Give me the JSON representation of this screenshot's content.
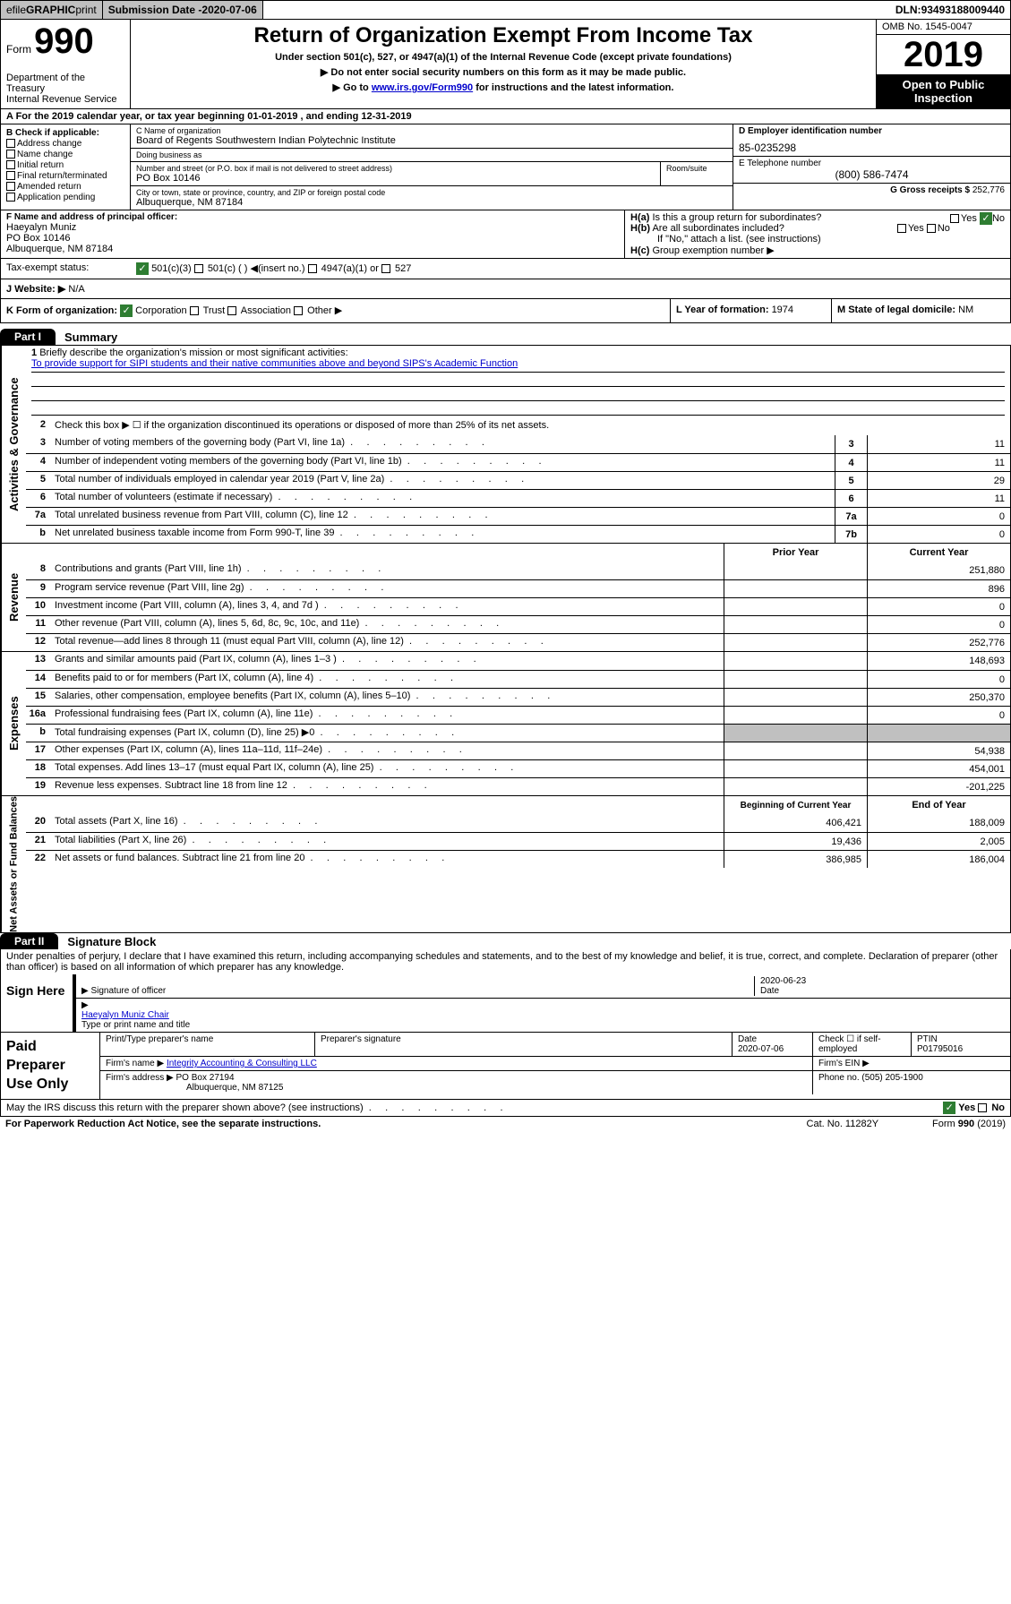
{
  "topbar": {
    "efile_prefix": "efile ",
    "efile_graphic": "GRAPHIC",
    "efile_print": " print",
    "submission_label": "Submission Date - ",
    "submission_date": "2020-07-06",
    "dln_label": "DLN: ",
    "dln": "93493188009440"
  },
  "header": {
    "form_word": "Form",
    "form_num": "990",
    "dept": "Department of the Treasury\nInternal Revenue Service",
    "title": "Return of Organization Exempt From Income Tax",
    "sub1": "Under section 501(c), 527, or 4947(a)(1) of the Internal Revenue Code (except private foundations)",
    "sub2": "Do not enter social security numbers on this form as it may be made public.",
    "sub3_pre": "Go to ",
    "sub3_link": "www.irs.gov/Form990",
    "sub3_post": " for instructions and the latest information.",
    "omb": "OMB No. 1545-0047",
    "year": "2019",
    "open": "Open to Public Inspection"
  },
  "rowA": {
    "text": "A For the 2019 calendar year, or tax year beginning ",
    "begin": "01-01-2019",
    "mid": "   , and ending ",
    "end": "12-31-2019"
  },
  "boxB": {
    "title": "B Check if applicable:",
    "items": [
      "Address change",
      "Name change",
      "Initial return",
      "Final return/terminated",
      "Amended return",
      "Application pending"
    ]
  },
  "boxC": {
    "name_label": "C Name of organization",
    "name": "Board of Regents Southwestern Indian Polytechnic Institute",
    "dba_label": "Doing business as",
    "addr_label": "Number and street (or P.O. box if mail is not delivered to street address)",
    "room_label": "Room/suite",
    "addr": "PO Box 10146",
    "city_label": "City or town, state or province, country, and ZIP or foreign postal code",
    "city": "Albuquerque, NM  87184"
  },
  "boxD": {
    "ein_label": "D Employer identification number",
    "ein": "85-0235298",
    "phone_label": "E Telephone number",
    "phone": "(800) 586-7474",
    "gross_label": "G Gross receipts $ ",
    "gross": "252,776"
  },
  "boxF": {
    "label": "F  Name and address of principal officer:",
    "name": "Haeyalyn Muniz",
    "addr1": "PO Box 10146",
    "addr2": "Albuquerque, NM  87184"
  },
  "boxH": {
    "ha": "H(a)  Is this a group return for subordinates?",
    "hb": "H(b)  Are all subordinates included?",
    "hb_note": "If \"No,\" attach a list. (see instructions)",
    "hc": "H(c)  Group exemption number ▶",
    "yes": "Yes",
    "no": "No"
  },
  "tax": {
    "label": "Tax-exempt status:",
    "o1": "501(c)(3)",
    "o2": "501(c) (   ) ◀(insert no.)",
    "o3": "4947(a)(1) or",
    "o4": "527"
  },
  "rowJ": {
    "label": "J   Website: ▶",
    "val": "  N/A"
  },
  "rowK": {
    "label": "K Form of organization:",
    "opts": [
      "Corporation",
      "Trust",
      "Association",
      "Other ▶"
    ],
    "l_label": "L Year of formation: ",
    "l_val": "1974",
    "m_label": "M State of legal domicile: ",
    "m_val": "NM"
  },
  "part1": {
    "tab": "Part I",
    "title": "Summary"
  },
  "governance": {
    "side": "Activities & Governance",
    "l1_label": "Briefly describe the organization's mission or most significant activities:",
    "l1_val": "To provide support for SIPI students and their native communities above and beyond SIPS's Academic Function",
    "l2": "Check this box ▶ ☐  if the organization discontinued its operations or disposed of more than 25% of its net assets.",
    "rows": [
      {
        "n": "3",
        "t": "Number of voting members of the governing body (Part VI, line 1a)",
        "b": "3",
        "v": "11"
      },
      {
        "n": "4",
        "t": "Number of independent voting members of the governing body (Part VI, line 1b)",
        "b": "4",
        "v": "11"
      },
      {
        "n": "5",
        "t": "Total number of individuals employed in calendar year 2019 (Part V, line 2a)",
        "b": "5",
        "v": "29"
      },
      {
        "n": "6",
        "t": "Total number of volunteers (estimate if necessary)",
        "b": "6",
        "v": "11"
      },
      {
        "n": "7a",
        "t": "Total unrelated business revenue from Part VIII, column (C), line 12",
        "b": "7a",
        "v": "0"
      },
      {
        "n": "b",
        "t": "Net unrelated business taxable income from Form 990-T, line 39",
        "b": "7b",
        "v": "0"
      }
    ]
  },
  "revenue": {
    "side": "Revenue",
    "hdr_prior": "Prior Year",
    "hdr_curr": "Current Year",
    "rows": [
      {
        "n": "8",
        "t": "Contributions and grants (Part VIII, line 1h)",
        "p": "",
        "c": "251,880"
      },
      {
        "n": "9",
        "t": "Program service revenue (Part VIII, line 2g)",
        "p": "",
        "c": "896"
      },
      {
        "n": "10",
        "t": "Investment income (Part VIII, column (A), lines 3, 4, and 7d )",
        "p": "",
        "c": "0"
      },
      {
        "n": "11",
        "t": "Other revenue (Part VIII, column (A), lines 5, 6d, 8c, 9c, 10c, and 11e)",
        "p": "",
        "c": "0"
      },
      {
        "n": "12",
        "t": "Total revenue—add lines 8 through 11 (must equal Part VIII, column (A), line 12)",
        "p": "",
        "c": "252,776"
      }
    ]
  },
  "expenses": {
    "side": "Expenses",
    "rows": [
      {
        "n": "13",
        "t": "Grants and similar amounts paid (Part IX, column (A), lines 1–3 )",
        "p": "",
        "c": "148,693"
      },
      {
        "n": "14",
        "t": "Benefits paid to or for members (Part IX, column (A), line 4)",
        "p": "",
        "c": "0"
      },
      {
        "n": "15",
        "t": "Salaries, other compensation, employee benefits (Part IX, column (A), lines 5–10)",
        "p": "",
        "c": "250,370"
      },
      {
        "n": "16a",
        "t": "Professional fundraising fees (Part IX, column (A), line 11e)",
        "p": "",
        "c": "0"
      },
      {
        "n": "b",
        "t": "Total fundraising expenses (Part IX, column (D), line 25) ▶0",
        "p": "shade",
        "c": "shade"
      },
      {
        "n": "17",
        "t": "Other expenses (Part IX, column (A), lines 11a–11d, 11f–24e)",
        "p": "",
        "c": "54,938"
      },
      {
        "n": "18",
        "t": "Total expenses. Add lines 13–17 (must equal Part IX, column (A), line 25)",
        "p": "",
        "c": "454,001"
      },
      {
        "n": "19",
        "t": "Revenue less expenses. Subtract line 18 from line 12",
        "p": "",
        "c": "-201,225"
      }
    ]
  },
  "netassets": {
    "side": "Net Assets or Fund Balances",
    "hdr_begin": "Beginning of Current Year",
    "hdr_end": "End of Year",
    "rows": [
      {
        "n": "20",
        "t": "Total assets (Part X, line 16)",
        "p": "406,421",
        "c": "188,009"
      },
      {
        "n": "21",
        "t": "Total liabilities (Part X, line 26)",
        "p": "19,436",
        "c": "2,005"
      },
      {
        "n": "22",
        "t": "Net assets or fund balances. Subtract line 21 from line 20",
        "p": "386,985",
        "c": "186,004"
      }
    ]
  },
  "part2": {
    "tab": "Part II",
    "title": "Signature Block"
  },
  "sig": {
    "decl": "Under penalties of perjury, I declare that I have examined this return, including accompanying schedules and statements, and to the best of my knowledge and belief, it is true, correct, and complete. Declaration of preparer (other than officer) is based on all information of which preparer has any knowledge.",
    "sign_here": "Sign Here",
    "sig_officer": "Signature of officer",
    "date": "2020-06-23",
    "date_label": "Date",
    "name": "Haeyalyn Muniz  Chair",
    "name_label": "Type or print name and title"
  },
  "paid": {
    "label": "Paid Preparer Use Only",
    "h1": "Print/Type preparer's name",
    "h2": "Preparer's signature",
    "h3_label": "Date",
    "h3": "2020-07-06",
    "h4_label": "Check ☐ if self-employed",
    "h5_label": "PTIN",
    "h5": "P01795016",
    "firm_name_label": "Firm's name    ▶ ",
    "firm_name": "Integrity Accounting & Consulting LLC",
    "firm_ein_label": "Firm's EIN ▶",
    "firm_addr_label": "Firm's address ▶ ",
    "firm_addr1": "PO Box 27194",
    "firm_addr2": "Albuquerque, NM  87125",
    "phone_label": "Phone no. ",
    "phone": "(505) 205-1900"
  },
  "bottom": {
    "q": "May the IRS discuss this return with the preparer shown above? (see instructions)",
    "yes": "Yes",
    "no": "No"
  },
  "footer": {
    "left": "For Paperwork Reduction Act Notice, see the separate instructions.",
    "mid": "Cat. No. 11282Y",
    "right": "Form 990 (2019)"
  }
}
